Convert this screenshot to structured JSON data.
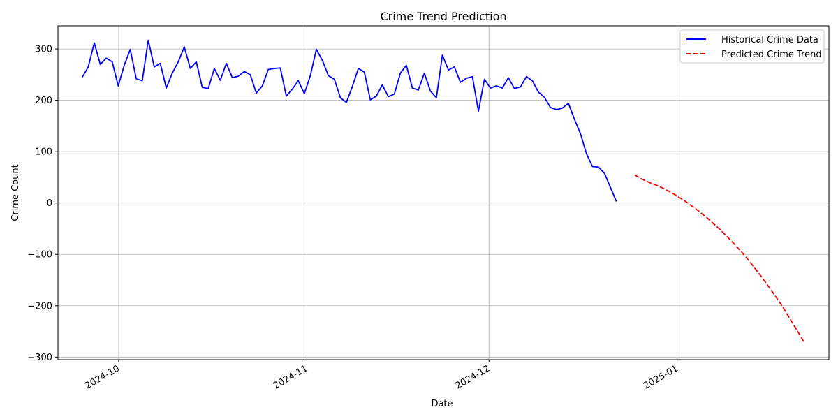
{
  "chart_data": {
    "type": "line",
    "title": "Crime Trend Prediction",
    "xlabel": "Date",
    "ylabel": "Crime Count",
    "x_axis": {
      "ticks": [
        "2024-10-01",
        "2024-11-01",
        "2024-12-01",
        "2025-01-01"
      ],
      "tick_labels": [
        "2024-10",
        "2024-11",
        "2024-12",
        "2025-01"
      ],
      "range": [
        "2024-09-21",
        "2025-01-26"
      ]
    },
    "ylim": [
      -305,
      345
    ],
    "yticks": [
      -300,
      -200,
      -100,
      0,
      100,
      200,
      300
    ],
    "ytick_labels": [
      "−300",
      "−200",
      "−100",
      "0",
      "100",
      "200",
      "300"
    ],
    "grid": true,
    "legend_position": "top-right",
    "series": [
      {
        "name": "Historical Crime Data",
        "color": "#0000ff",
        "style": "solid",
        "start_date": "2024-09-25",
        "values": [
          245,
          265,
          312,
          270,
          282,
          275,
          228,
          268,
          299,
          242,
          238,
          317,
          265,
          272,
          224,
          253,
          275,
          304,
          262,
          275,
          225,
          223,
          262,
          239,
          272,
          244,
          247,
          256,
          250,
          214,
          228,
          260,
          262,
          263,
          208,
          222,
          238,
          213,
          248,
          299,
          278,
          248,
          241,
          205,
          196,
          227,
          262,
          255,
          201,
          208,
          230,
          207,
          212,
          253,
          268,
          224,
          220,
          253,
          218,
          205,
          288,
          259,
          265,
          235,
          243,
          246,
          179,
          241,
          224,
          228,
          224,
          244,
          223,
          226,
          246,
          238,
          216,
          206,
          186,
          182,
          185,
          194,
          163,
          135,
          96,
          71,
          70,
          58,
          30,
          3
        ]
      },
      {
        "name": "Predicted Crime Trend",
        "color": "#ff0000",
        "style": "dashed",
        "start_date": "2024-12-25",
        "values": [
          55,
          48,
          43,
          38,
          34,
          29,
          23,
          17,
          10,
          3,
          -5,
          -13,
          -22,
          -31,
          -41,
          -51,
          -62,
          -73,
          -85,
          -97,
          -110,
          -124,
          -138,
          -153,
          -168,
          -184,
          -200,
          -218,
          -236,
          -254,
          -273
        ]
      }
    ]
  }
}
